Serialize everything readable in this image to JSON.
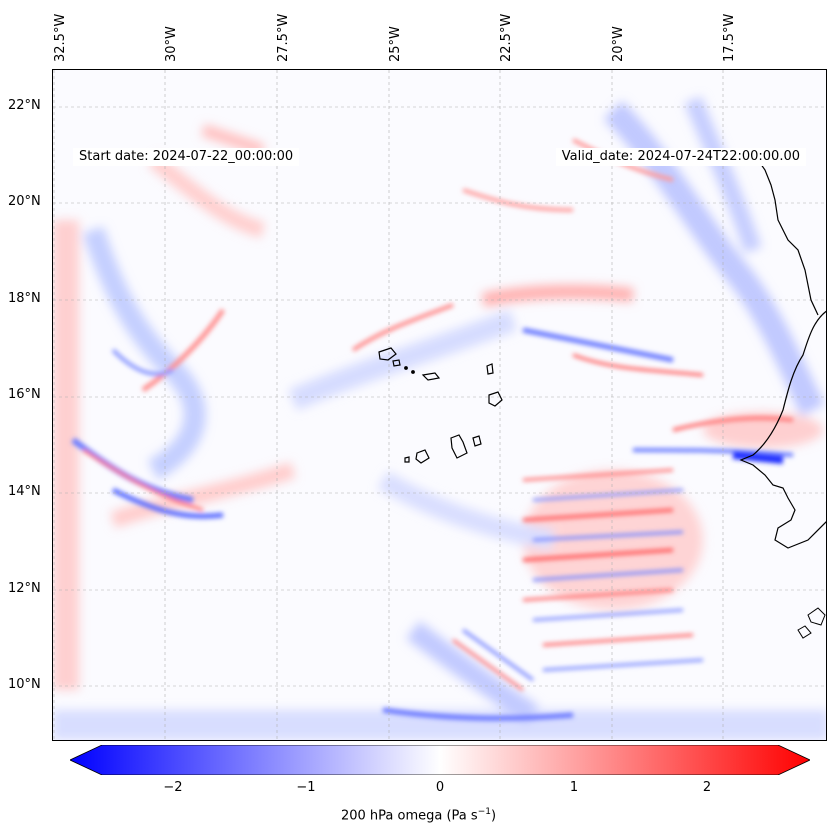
{
  "map": {
    "title_left_label": "Start date:",
    "start_date": "2024-07-22_00:00:00",
    "title_right_label": "Valid_date:",
    "valid_date": "2024-07-24T22:00:00.00",
    "variable": "200 hPa omega",
    "units": "Pa s",
    "units_exponent": "−1",
    "longitude_labels": [
      "32.5°W",
      "30°W",
      "27.5°W",
      "25°W",
      "22.5°W",
      "20°W",
      "17.5°W"
    ],
    "latitude_labels": [
      "22°N",
      "20°N",
      "18°N",
      "16°N",
      "14°N",
      "12°N",
      "10°N"
    ],
    "lon_range": [
      -32.8,
      -15.4
    ],
    "lat_range": [
      8.9,
      22.7
    ],
    "projection": "PlateCarree",
    "features": [
      "West African coastline",
      "Cape Verde islands"
    ]
  },
  "colorbar": {
    "ticks": [
      "−2",
      "−1",
      "0",
      "1",
      "2"
    ],
    "range": [
      -2.6,
      2.6
    ],
    "colormap": "bwr",
    "extend": "both",
    "color_min": "#0000ff",
    "color_mid": "#ffffff",
    "color_max": "#ff0000"
  }
}
